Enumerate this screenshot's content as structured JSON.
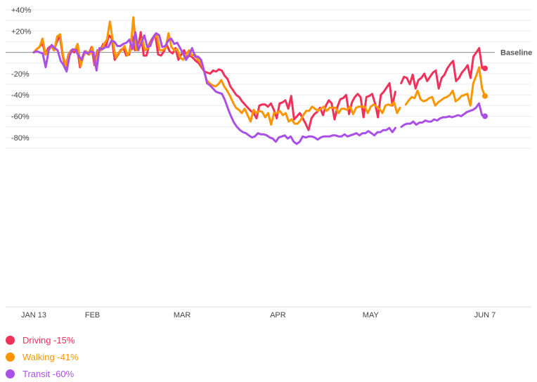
{
  "chart_data": {
    "type": "line",
    "x_axis": {
      "ticks": [
        {
          "date": "2020-01-13",
          "label": "JAN 13"
        },
        {
          "date": "2020-02-01",
          "label": "FEB"
        },
        {
          "date": "2020-03-01",
          "label": "MAR"
        },
        {
          "date": "2020-04-01",
          "label": "APR"
        },
        {
          "date": "2020-05-01",
          "label": "MAY"
        },
        {
          "date": "2020-06-07",
          "label": "JUN 7"
        }
      ],
      "range": [
        "2020-01-13",
        "2020-06-07"
      ]
    },
    "y_axis": {
      "ticks": [
        {
          "value": 40,
          "label": "+40%"
        },
        {
          "value": 20,
          "label": "+20%"
        },
        {
          "value": 0,
          "label": ""
        },
        {
          "value": -20,
          "label": "-20%"
        },
        {
          "value": -40,
          "label": "-40%"
        },
        {
          "value": -60,
          "label": "-60%"
        },
        {
          "value": -80,
          "label": "-80%"
        }
      ],
      "ylim": [
        -100,
        40
      ],
      "grid": true
    },
    "baseline": {
      "value": 0,
      "label": "Baseline"
    },
    "gap": [
      "2020-05-11",
      "2020-05-12"
    ],
    "series": [
      {
        "name": "Driving",
        "legend_label": "Driving -15%",
        "color": "#f0325a",
        "end_value": -15,
        "values": [
          0,
          3,
          5,
          9,
          -2,
          4,
          6,
          2,
          10,
          16,
          -3,
          -15,
          -2,
          2,
          0,
          5,
          -14,
          -3,
          1,
          -2,
          5,
          -12,
          2,
          2,
          8,
          6,
          16,
          13,
          -7,
          -3,
          2,
          4,
          -3,
          -2,
          16,
          2,
          4,
          19,
          -3,
          -3,
          8,
          13,
          17,
          -2,
          -3,
          1,
          7,
          1,
          -1,
          4,
          -7,
          -2,
          2,
          -5,
          -3,
          -5,
          -8,
          -10,
          -14,
          -18,
          -19,
          -20,
          -17,
          -18,
          -16,
          -17,
          -22,
          -25,
          -32,
          -36,
          -40,
          -42,
          -46,
          -49,
          -52,
          -55,
          -57,
          -62,
          -50,
          -49,
          -49,
          -51,
          -48,
          -54,
          -62,
          -48,
          -47,
          -45,
          -53,
          -41,
          -63,
          -60,
          -57,
          -62,
          -67,
          -73,
          -62,
          -58,
          -56,
          -52,
          -59,
          -50,
          -45,
          -48,
          -63,
          -51,
          -44,
          -43,
          -40,
          -58,
          -47,
          -42,
          -39,
          -42,
          -61,
          -42,
          -41,
          -39,
          -48,
          -61,
          -40,
          -37,
          -33,
          -29,
          -50,
          -37,
          null,
          -29,
          -23,
          -24,
          -30,
          -21,
          -34,
          -26,
          -24,
          -20,
          -27,
          -23,
          -19,
          -17,
          -34,
          -24,
          -21,
          -15,
          -11,
          -8,
          -27,
          -24,
          -19,
          -16,
          -12,
          -24,
          -4,
          0,
          4,
          -15,
          -15
        ],
        "label_from": null
      },
      {
        "name": "Walking",
        "legend_label": "Walking -41%",
        "color": "#fa9600",
        "end_value": -41,
        "values": [
          0,
          3,
          5,
          13,
          -2,
          2,
          6,
          2,
          15,
          17,
          -3,
          -13,
          -2,
          2,
          2,
          8,
          -13,
          -3,
          1,
          -2,
          5,
          -12,
          2,
          2,
          8,
          12,
          29,
          10,
          -5,
          0,
          2,
          6,
          -3,
          2,
          33,
          2,
          7,
          13,
          2,
          4,
          9,
          14,
          16,
          2,
          2,
          4,
          18,
          5,
          2,
          3,
          -5,
          -7,
          -2,
          2,
          -3,
          -2,
          -7,
          -10,
          -16,
          -26,
          -29,
          -31,
          -32,
          -30,
          -26,
          -32,
          -36,
          -41,
          -47,
          -52,
          -54,
          -57,
          -53,
          -59,
          -65,
          -54,
          -57,
          -55,
          -56,
          -61,
          -57,
          -68,
          -57,
          -57,
          -55,
          -59,
          -57,
          -65,
          -63,
          -67,
          -67,
          -64,
          -59,
          -55,
          -55,
          -51,
          -53,
          -55,
          -53,
          -51,
          -55,
          -52,
          -52,
          -52,
          -57,
          -53,
          -53,
          -54,
          -51,
          -58,
          -52,
          -51,
          -51,
          -51,
          -57,
          -51,
          -49,
          -51,
          -53,
          -57,
          -50,
          -49,
          -50,
          -47,
          -57,
          -52,
          null,
          -49,
          -45,
          -42,
          -43,
          -36,
          -44,
          -46,
          -45,
          -43,
          -42,
          -50,
          -47,
          -45,
          -43,
          -42,
          -40,
          -36,
          -46,
          -44,
          -41,
          -40,
          -39,
          -50,
          -29,
          -22,
          -14,
          -34,
          -41
        ],
        "label_from": null
      },
      {
        "name": "Transit",
        "legend_label": "Transit -60%",
        "color": "#aa50e6",
        "end_value": -60,
        "values": [
          0,
          1,
          0,
          -1,
          -14,
          2,
          7,
          4,
          2,
          -8,
          -12,
          -18,
          -3,
          3,
          2,
          -3,
          -7,
          1,
          -1,
          1,
          0,
          -17,
          4,
          3,
          5,
          5,
          11,
          10,
          6,
          6,
          8,
          9,
          12,
          3,
          19,
          2,
          9,
          16,
          5,
          6,
          14,
          18,
          16,
          5,
          6,
          11,
          13,
          8,
          9,
          4,
          -1,
          -7,
          -2,
          4,
          -4,
          -4,
          -7,
          -17,
          -29,
          -31,
          -34,
          -37,
          -38,
          -39,
          -45,
          -53,
          -60,
          -66,
          -70,
          -73,
          -75,
          -76,
          -78,
          -80,
          -79,
          -76,
          -77,
          -77,
          -78,
          -80,
          -81,
          -84,
          -80,
          -79,
          -78,
          -81,
          -79,
          -84,
          -86,
          -84,
          -79,
          -80,
          -79,
          -79,
          -80,
          -82,
          -80,
          -79,
          -79,
          -79,
          -78,
          -78,
          -79,
          -79,
          -77,
          -79,
          -78,
          -77,
          -76,
          -78,
          -76,
          -76,
          -74,
          -76,
          -78,
          -75,
          -75,
          -73,
          -73,
          -71,
          -75,
          -71,
          null,
          -70,
          -68,
          -67,
          -67,
          -65,
          -68,
          -66,
          -66,
          -64,
          -65,
          -65,
          -63,
          -64,
          -62,
          -61,
          -61,
          -60,
          -61,
          -60,
          -59,
          -60,
          -58,
          -56,
          -55,
          -54,
          -52,
          -48,
          -59,
          -60
        ],
        "label_from": null
      }
    ]
  }
}
